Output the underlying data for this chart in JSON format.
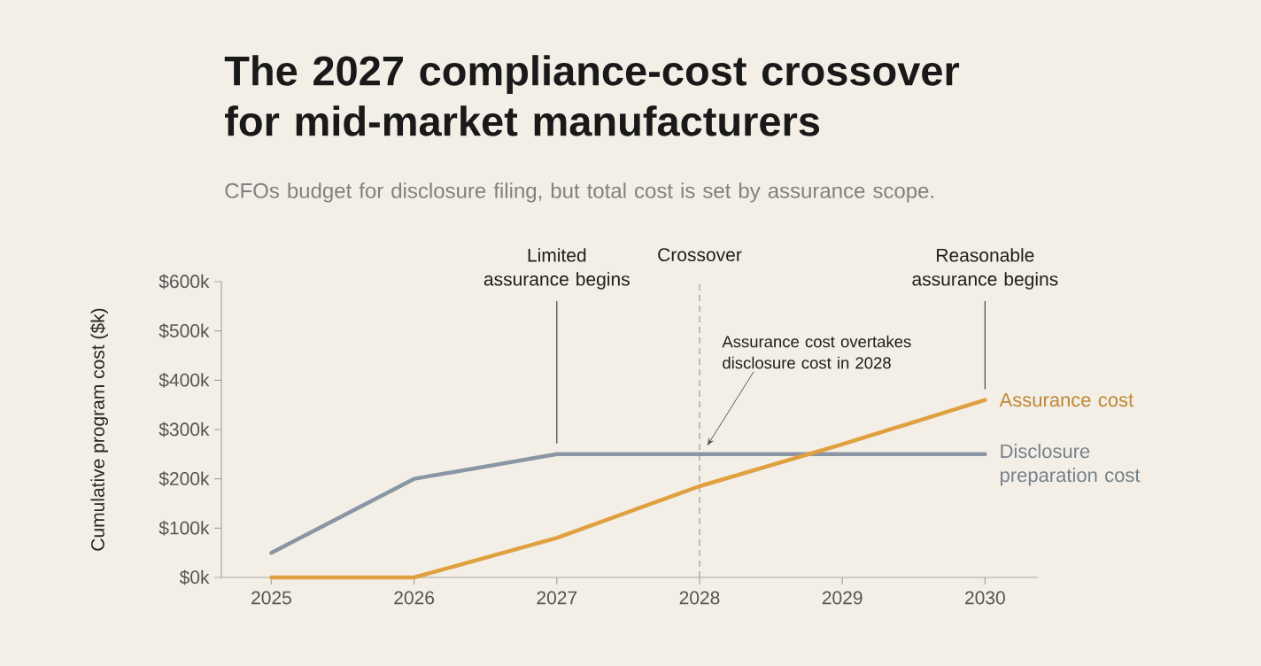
{
  "chart_data": {
    "type": "line",
    "title": "The 2027 compliance-cost crossover for mid-market manufacturers",
    "subtitle": "CFOs budget for disclosure filing, but total cost is set by assurance scope.",
    "ylabel": "Cumulative program cost ($k)",
    "x": [
      2025,
      2026,
      2027,
      2028,
      2029,
      2030
    ],
    "series": [
      {
        "name": "Disclosure preparation cost",
        "color": "#8a96a3",
        "values": [
          50,
          200,
          250,
          250,
          250,
          250
        ]
      },
      {
        "name": "Assurance cost",
        "color": "#e0a040",
        "values": [
          0,
          0,
          80,
          185,
          270,
          360
        ]
      }
    ],
    "xlim": [
      2024.65,
      2030.37
    ],
    "ylim": [
      0,
      600
    ],
    "xticks": [
      2025,
      2026,
      2027,
      2028,
      2029,
      2030
    ],
    "yticks": [
      {
        "value": 0,
        "label": "$0k"
      },
      {
        "value": 100,
        "label": "$100k"
      },
      {
        "value": 200,
        "label": "$200k"
      },
      {
        "value": 300,
        "label": "$300k"
      },
      {
        "value": 400,
        "label": "$400k"
      },
      {
        "value": 500,
        "label": "$500k"
      },
      {
        "value": 600,
        "label": "$600k"
      }
    ],
    "ref_lines": [
      {
        "axis": "x",
        "value": 2027,
        "label": "Limited assurance begins",
        "color": "#444444",
        "line_style": "solid"
      },
      {
        "axis": "x",
        "value": 2028,
        "label": "Crossover",
        "color": "#999999",
        "line_style": "dashed"
      },
      {
        "axis": "x",
        "value": 2030,
        "label": "Reasonable assurance begins",
        "color": "#444444",
        "line_style": "solid"
      }
    ],
    "annotations": [
      "Assurance cost overtakes disclosure cost in 2028"
    ],
    "grid": false
  }
}
